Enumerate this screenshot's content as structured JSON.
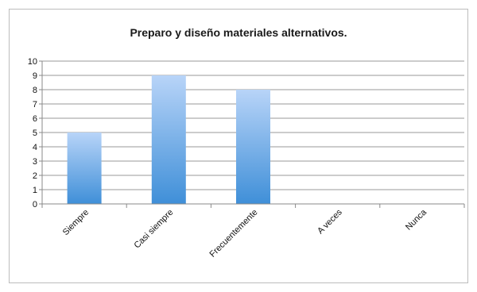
{
  "chart_data": {
    "type": "bar",
    "title": "Preparo y diseño materiales alternativos.",
    "categories": [
      "Siempre",
      "Casi siempre",
      "Frecuentemente",
      "A veces",
      "Nunca"
    ],
    "values": [
      5,
      9,
      8,
      0,
      0
    ],
    "ylim": [
      0,
      10
    ],
    "yticks": [
      0,
      1,
      2,
      3,
      4,
      5,
      6,
      7,
      8,
      9,
      10
    ],
    "xlabel": "",
    "ylabel": "",
    "grid": true,
    "legend": "none",
    "colors": {
      "bar_top": "#b8d4f8",
      "bar_bottom": "#3f8fd8",
      "grid": "#9a9a9a",
      "axis": "#8a8a8a"
    }
  }
}
